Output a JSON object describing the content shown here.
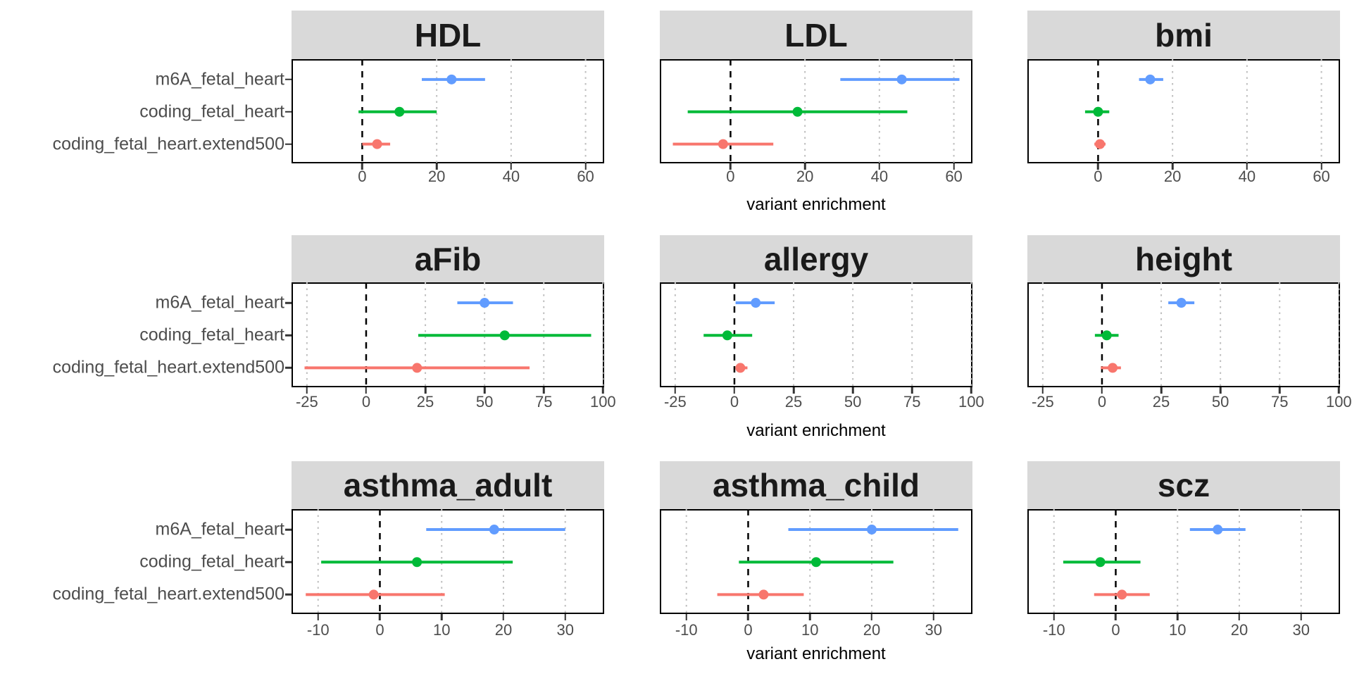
{
  "figure": {
    "x_axis_label": "variant enrichment",
    "strip_bg_color": "#D9D9D9",
    "panel_border_color": "#000000",
    "gridline_color": "#BFBFBF",
    "zero_line_color": "#000000",
    "text_color": "#4d4d4d"
  },
  "chart_data": {
    "type": "scatter",
    "subtype": "forest-pointrange-grid",
    "x_label": "variant enrichment",
    "categories": [
      "m6A_fetal_heart",
      "coding_fetal_heart",
      "coding_fetal_heart.extend500"
    ],
    "series_colors": [
      "#619CFF",
      "#00BA38",
      "#F8766D"
    ],
    "grid": "dotted vertical gridlines at ticks, black dashed line at 0",
    "legend_position": "none",
    "rows": [
      {
        "xlim": [
          -19,
          65
        ],
        "ticks": [
          0,
          20,
          40,
          60
        ]
      },
      {
        "xlim": [
          -31.5,
          100.5
        ],
        "ticks": [
          -25,
          0,
          25,
          50,
          75,
          100
        ]
      },
      {
        "xlim": [
          -14.3,
          36.3
        ],
        "ticks": [
          -10,
          0,
          10,
          20,
          30
        ]
      }
    ],
    "panels": [
      {
        "title": "HDL",
        "row": 0,
        "col": 0,
        "estimates": [
          {
            "category": "m6A_fetal_heart",
            "value": 24,
            "lo": 16,
            "hi": 33
          },
          {
            "category": "coding_fetal_heart",
            "value": 10,
            "lo": -1,
            "hi": 20
          },
          {
            "category": "coding_fetal_heart.extend500",
            "value": 4,
            "lo": 0,
            "hi": 7.5
          }
        ]
      },
      {
        "title": "LDL",
        "row": 0,
        "col": 1,
        "estimates": [
          {
            "category": "m6A_fetal_heart",
            "value": 46,
            "lo": 29.5,
            "hi": 61.5
          },
          {
            "category": "coding_fetal_heart",
            "value": 18,
            "lo": -11.5,
            "hi": 47.5
          },
          {
            "category": "coding_fetal_heart.extend500",
            "value": -2,
            "lo": -15.5,
            "hi": 11.5
          }
        ]
      },
      {
        "title": "bmi",
        "row": 0,
        "col": 2,
        "estimates": [
          {
            "category": "m6A_fetal_heart",
            "value": 14,
            "lo": 11,
            "hi": 17.5
          },
          {
            "category": "coding_fetal_heart",
            "value": 0,
            "lo": -3.5,
            "hi": 3
          },
          {
            "category": "coding_fetal_heart.extend500",
            "value": 0.5,
            "lo": -1,
            "hi": 2
          }
        ]
      },
      {
        "title": "aFib",
        "row": 1,
        "col": 0,
        "estimates": [
          {
            "category": "m6A_fetal_heart",
            "value": 50,
            "lo": 38.5,
            "hi": 62
          },
          {
            "category": "coding_fetal_heart",
            "value": 58.5,
            "lo": 22,
            "hi": 95
          },
          {
            "category": "coding_fetal_heart.extend500",
            "value": 21.5,
            "lo": -26,
            "hi": 69
          }
        ]
      },
      {
        "title": "allergy",
        "row": 1,
        "col": 1,
        "estimates": [
          {
            "category": "m6A_fetal_heart",
            "value": 9,
            "lo": 0.5,
            "hi": 17
          },
          {
            "category": "coding_fetal_heart",
            "value": -3,
            "lo": -13,
            "hi": 7.5
          },
          {
            "category": "coding_fetal_heart.extend500",
            "value": 2.5,
            "lo": 0.5,
            "hi": 5.5
          }
        ]
      },
      {
        "title": "height",
        "row": 1,
        "col": 2,
        "estimates": [
          {
            "category": "m6A_fetal_heart",
            "value": 33.5,
            "lo": 28,
            "hi": 39
          },
          {
            "category": "coding_fetal_heart",
            "value": 2,
            "lo": -3,
            "hi": 7
          },
          {
            "category": "coding_fetal_heart.extend500",
            "value": 4.5,
            "lo": -0.5,
            "hi": 8
          }
        ]
      },
      {
        "title": "asthma_adult",
        "row": 2,
        "col": 0,
        "estimates": [
          {
            "category": "m6A_fetal_heart",
            "value": 18.5,
            "lo": 7.5,
            "hi": 30
          },
          {
            "category": "coding_fetal_heart",
            "value": 6,
            "lo": -9.5,
            "hi": 21.5
          },
          {
            "category": "coding_fetal_heart.extend500",
            "value": -1,
            "lo": -12,
            "hi": 10.5
          }
        ]
      },
      {
        "title": "asthma_child",
        "row": 2,
        "col": 1,
        "estimates": [
          {
            "category": "m6A_fetal_heart",
            "value": 20,
            "lo": 6.5,
            "hi": 34
          },
          {
            "category": "coding_fetal_heart",
            "value": 11,
            "lo": -1.5,
            "hi": 23.5
          },
          {
            "category": "coding_fetal_heart.extend500",
            "value": 2.5,
            "lo": -5,
            "hi": 9
          }
        ]
      },
      {
        "title": "scz",
        "row": 2,
        "col": 2,
        "estimates": [
          {
            "category": "m6A_fetal_heart",
            "value": 16.5,
            "lo": 12,
            "hi": 21
          },
          {
            "category": "coding_fetal_heart",
            "value": -2.5,
            "lo": -8.5,
            "hi": 4
          },
          {
            "category": "coding_fetal_heart.extend500",
            "value": 1,
            "lo": -3.5,
            "hi": 5.5
          }
        ]
      }
    ]
  }
}
